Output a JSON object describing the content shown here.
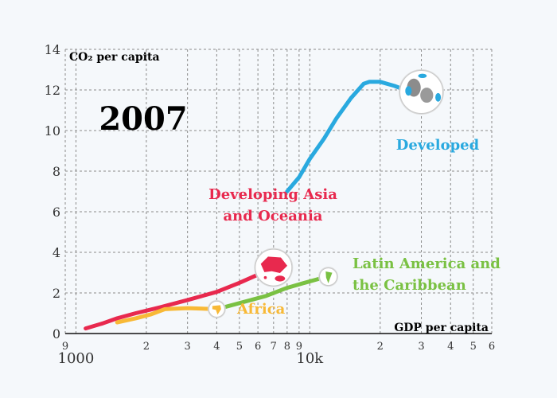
{
  "chart_data": {
    "type": "line",
    "year_label": "2007",
    "ylabel": "CO₂ per capita",
    "xlabel": "GDP per capita",
    "x_scale": "log",
    "xlim": [
      900,
      60000
    ],
    "ylim": [
      0,
      14
    ],
    "y_ticks": [
      0,
      2,
      4,
      6,
      8,
      10,
      12,
      14
    ],
    "x_major_ticks": [
      {
        "value": 1000,
        "label": "1000"
      },
      {
        "value": 10000,
        "label": "10k"
      }
    ],
    "x_minor_ticks": [
      {
        "value": 900,
        "label": "9"
      },
      {
        "value": 2000,
        "label": "2"
      },
      {
        "value": 3000,
        "label": "3"
      },
      {
        "value": 4000,
        "label": "4"
      },
      {
        "value": 5000,
        "label": "5"
      },
      {
        "value": 6000,
        "label": "6"
      },
      {
        "value": 7000,
        "label": "7"
      },
      {
        "value": 8000,
        "label": "8"
      },
      {
        "value": 9000,
        "label": "9"
      },
      {
        "value": 20000,
        "label": "2"
      },
      {
        "value": 30000,
        "label": "3"
      },
      {
        "value": 40000,
        "label": "4"
      },
      {
        "value": 50000,
        "label": "5"
      },
      {
        "value": 60000,
        "label": "6"
      }
    ],
    "grid": true,
    "series": [
      {
        "label_lines": [
          "Developed"
        ],
        "color": "#29a9df",
        "icon": "globe-icon",
        "points": [
          [
            8000,
            7.0
          ],
          [
            9000,
            7.7
          ],
          [
            10000,
            8.6
          ],
          [
            11500,
            9.6
          ],
          [
            13000,
            10.6
          ],
          [
            15000,
            11.6
          ],
          [
            17000,
            12.3
          ],
          [
            18000,
            12.4
          ],
          [
            20000,
            12.4
          ],
          [
            23000,
            12.2
          ],
          [
            27000,
            11.9
          ],
          [
            30000,
            11.9
          ]
        ]
      },
      {
        "label_lines": [
          "Developing Asia",
          "and Oceania"
        ],
        "color": "#e8294e",
        "icon": "asia-oceania-icon",
        "points": [
          [
            1100,
            0.25
          ],
          [
            1300,
            0.5
          ],
          [
            1500,
            0.75
          ],
          [
            1800,
            1.0
          ],
          [
            2300,
            1.3
          ],
          [
            3000,
            1.65
          ],
          [
            4000,
            2.05
          ],
          [
            5000,
            2.5
          ],
          [
            6000,
            2.9
          ],
          [
            7000,
            3.25
          ]
        ]
      },
      {
        "label_lines": [
          "Latin America and",
          "the Caribbean"
        ],
        "color": "#7ac143",
        "icon": "south-america-icon",
        "points": [
          [
            4000,
            1.2
          ],
          [
            5000,
            1.5
          ],
          [
            6500,
            1.85
          ],
          [
            8000,
            2.25
          ],
          [
            9500,
            2.5
          ],
          [
            11000,
            2.7
          ],
          [
            12000,
            2.8
          ]
        ]
      },
      {
        "label_lines": [
          "Africa"
        ],
        "color": "#f8b936",
        "icon": "africa-icon",
        "points": [
          [
            1500,
            0.55
          ],
          [
            1800,
            0.75
          ],
          [
            2100,
            0.95
          ],
          [
            2400,
            1.2
          ],
          [
            3000,
            1.25
          ],
          [
            4000,
            1.2
          ]
        ]
      }
    ]
  }
}
